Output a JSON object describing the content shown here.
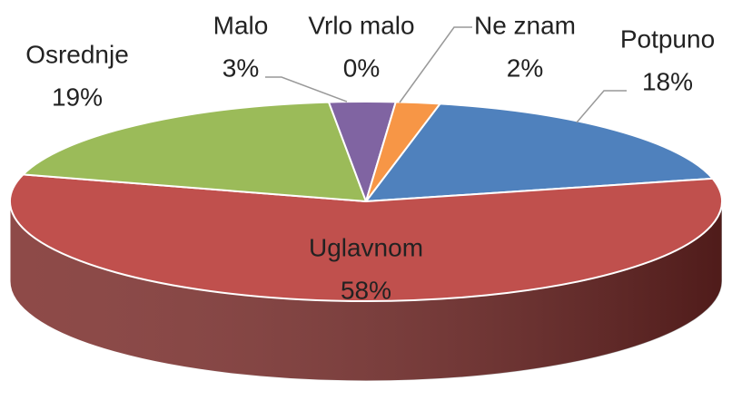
{
  "chart_data": {
    "type": "pie3d",
    "categories": [
      "Potpuno",
      "Uglavnom",
      "Osrednje",
      "Malo",
      "Vrlo malo",
      "Ne znam"
    ],
    "values": [
      18,
      58,
      19,
      3,
      0,
      2
    ],
    "value_labels": [
      "18%",
      "58%",
      "19%",
      "3%",
      "0%",
      "2%"
    ],
    "colors": [
      "#4f81bd",
      "#c0504d",
      "#9bbb59",
      "#8064a2",
      "#4bacc6",
      "#f79646"
    ],
    "side_colors": [
      "#2f5480",
      "#7a2a28",
      "#5f7a30",
      "#4f3a6b",
      "#2d7085",
      "#b0641f"
    ]
  }
}
